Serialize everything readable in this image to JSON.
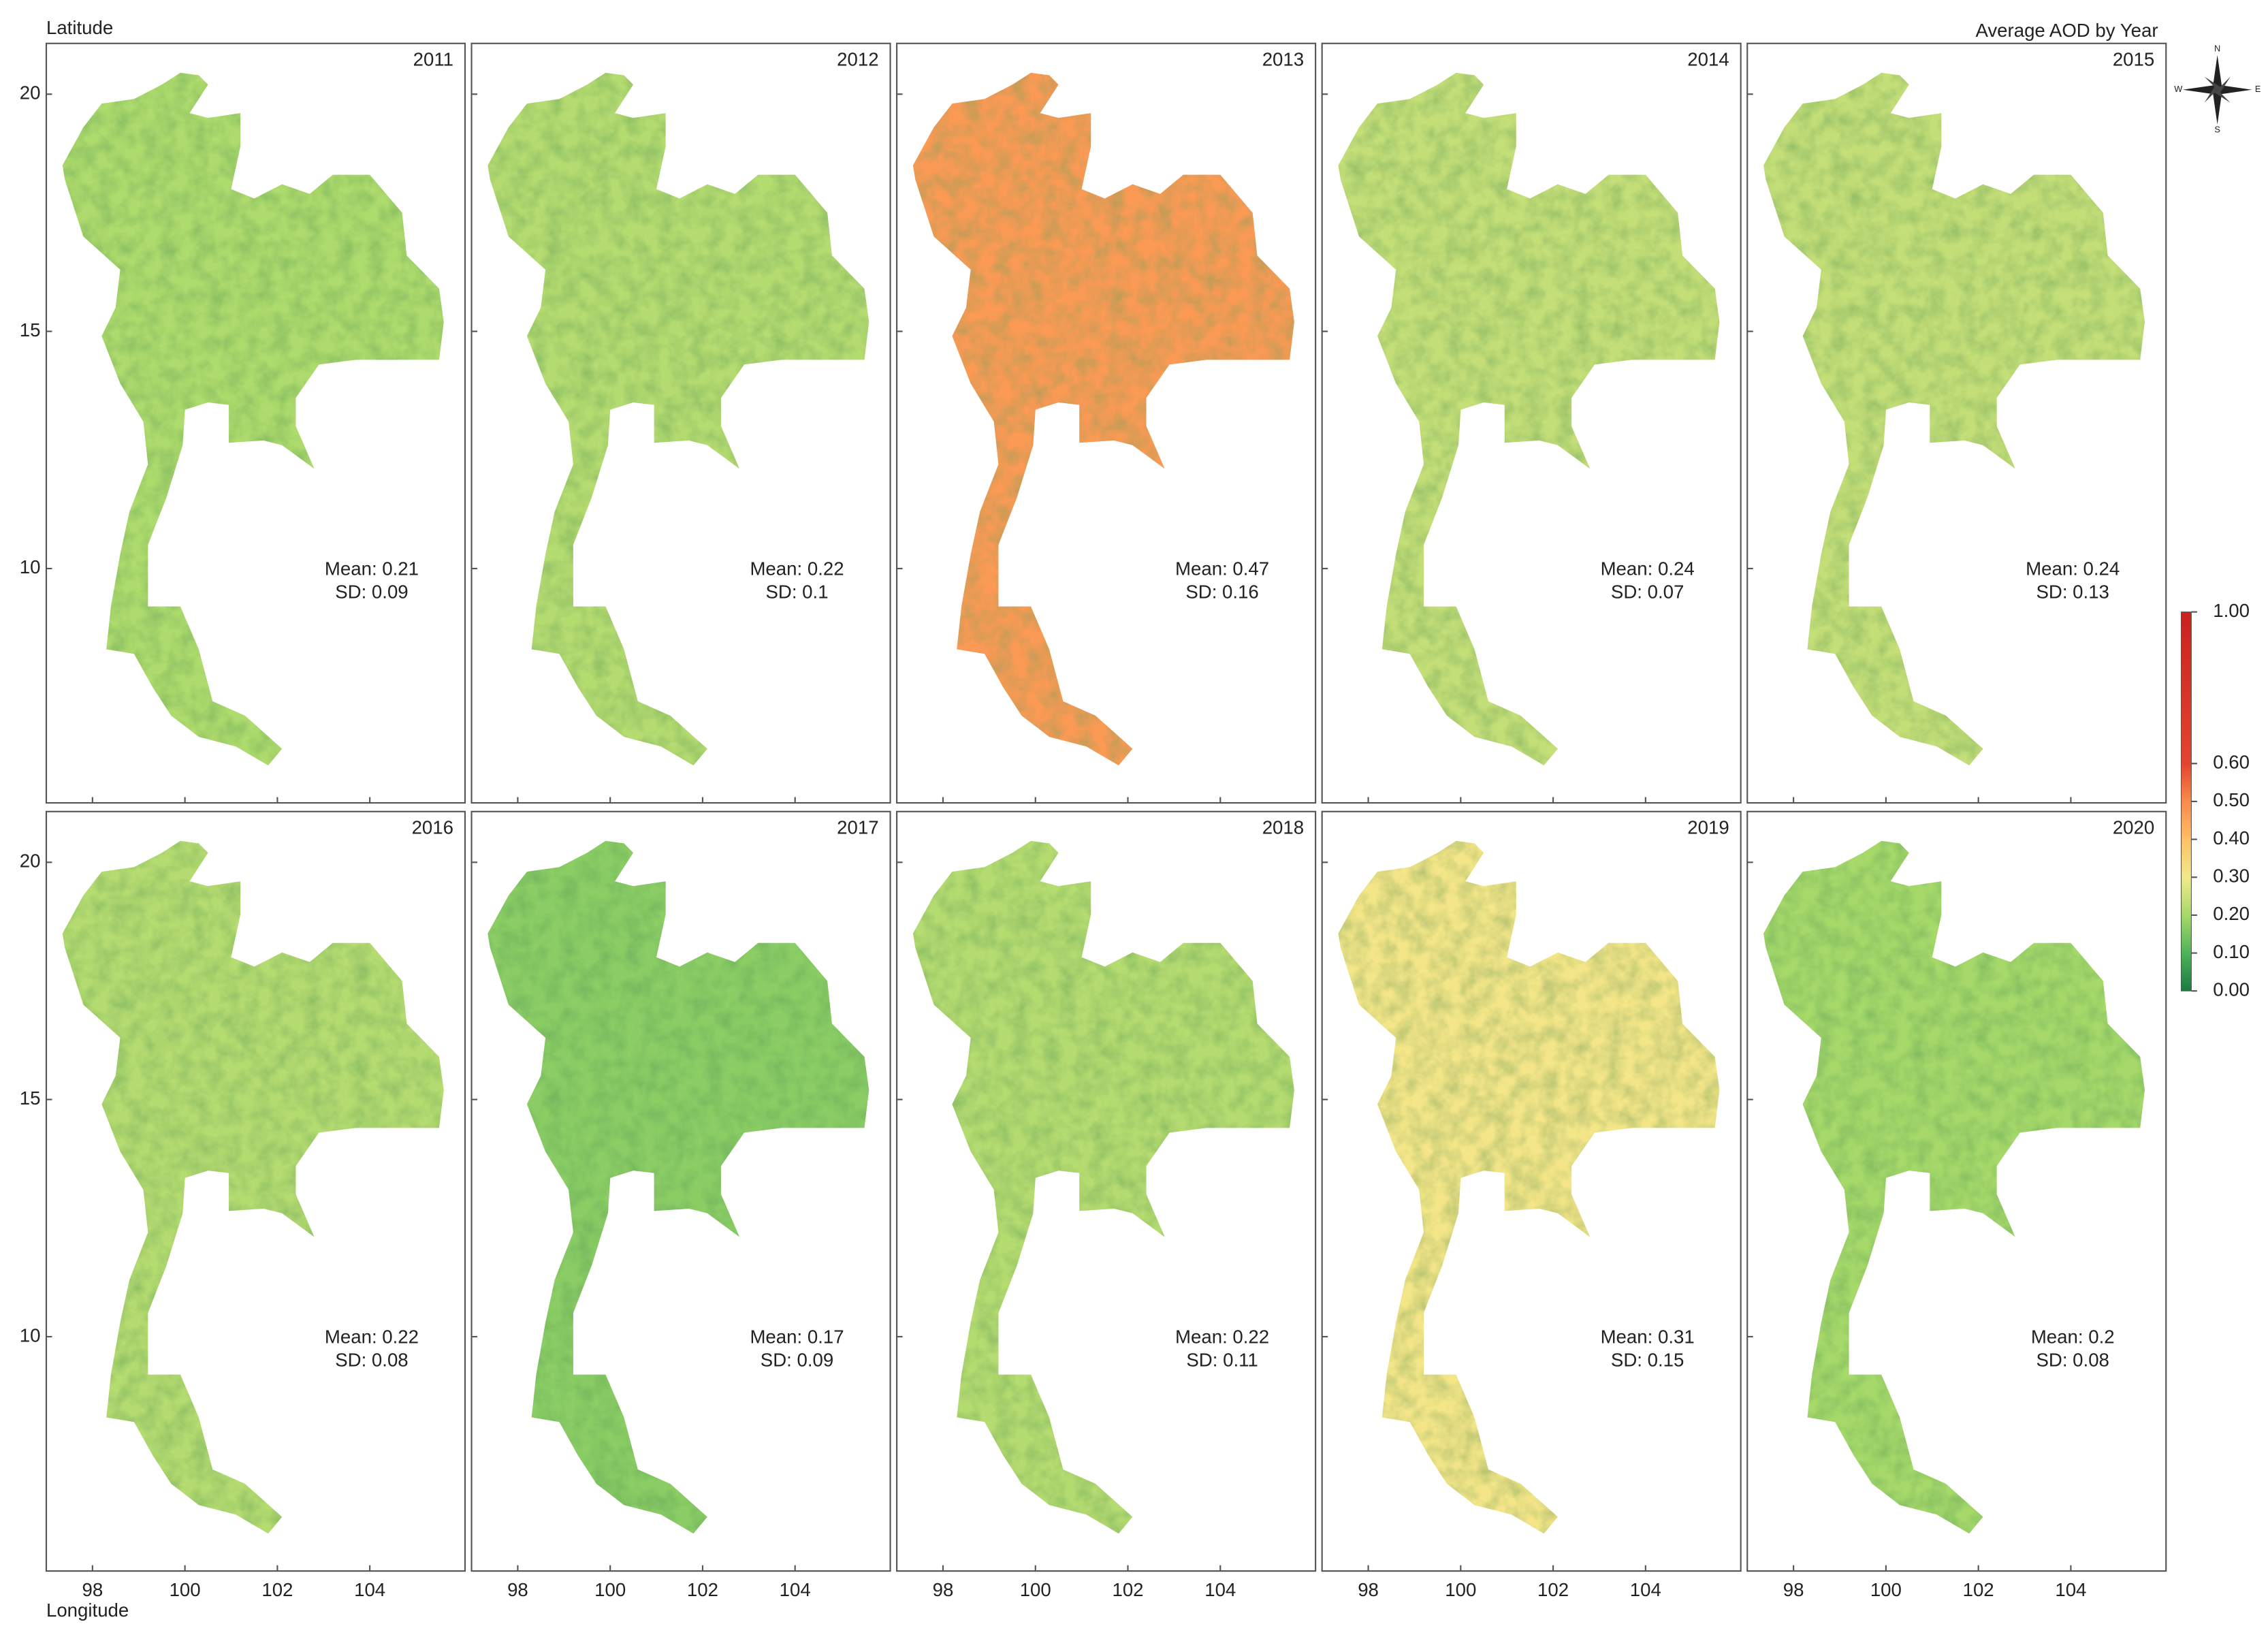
{
  "figure": {
    "title": "Average AOD by Year",
    "y_label": "Latitude",
    "x_label": "Longitude",
    "xlim": [
      97,
      106.06
    ],
    "ylim": [
      5.06,
      21.07
    ],
    "xticks": [
      98,
      100,
      102,
      104
    ],
    "yticks": [
      10,
      15,
      20
    ],
    "compass": {
      "n": "N",
      "e": "E",
      "s": "S",
      "w": "W"
    },
    "panels": [
      {
        "year": "2011",
        "mean": 0.21,
        "mean_label": "Mean: 0.21",
        "sd_label": "SD: 0.09"
      },
      {
        "year": "2012",
        "mean": 0.22,
        "mean_label": "Mean: 0.22",
        "sd_label": "SD: 0.1"
      },
      {
        "year": "2013",
        "mean": 0.47,
        "mean_label": "Mean: 0.47",
        "sd_label": "SD: 0.16"
      },
      {
        "year": "2014",
        "mean": 0.24,
        "mean_label": "Mean: 0.24",
        "sd_label": "SD: 0.07"
      },
      {
        "year": "2015",
        "mean": 0.24,
        "mean_label": "Mean: 0.24",
        "sd_label": "SD: 0.13"
      },
      {
        "year": "2016",
        "mean": 0.22,
        "mean_label": "Mean: 0.22",
        "sd_label": "SD: 0.08"
      },
      {
        "year": "2017",
        "mean": 0.17,
        "mean_label": "Mean: 0.17",
        "sd_label": "SD: 0.09"
      },
      {
        "year": "2018",
        "mean": 0.22,
        "mean_label": "Mean: 0.22",
        "sd_label": "SD: 0.11"
      },
      {
        "year": "2019",
        "mean": 0.31,
        "mean_label": "Mean: 0.31",
        "sd_label": "SD: 0.15"
      },
      {
        "year": "2020",
        "mean": 0.2,
        "mean_label": "Mean: 0.2",
        "sd_label": "SD: 0.08"
      }
    ],
    "colorbar": {
      "lim": [
        0,
        1
      ],
      "ticks": [
        {
          "value": 1,
          "label": "1.00"
        },
        {
          "value": 0.6,
          "label": "0.60"
        },
        {
          "value": 0.5,
          "label": "0.50"
        },
        {
          "value": 0.4,
          "label": "0.40"
        },
        {
          "value": 0.3,
          "label": "0.30"
        },
        {
          "value": 0.2,
          "label": "0.20"
        },
        {
          "value": 0.1,
          "label": "0.10"
        },
        {
          "value": 0,
          "label": "0.00"
        }
      ]
    }
  }
}
